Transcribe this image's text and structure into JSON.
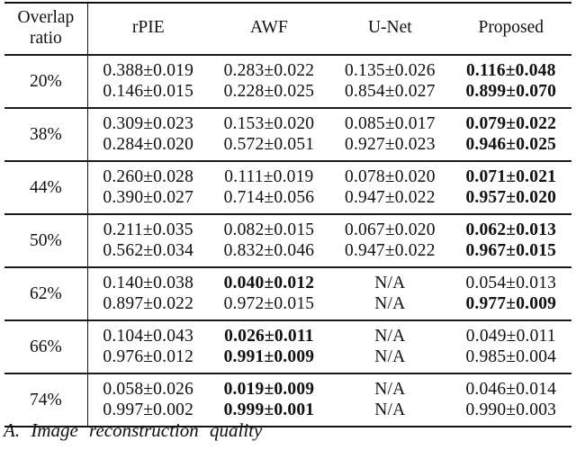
{
  "table": {
    "header": {
      "overlap_line1": "Overlap",
      "overlap_line2": "ratio",
      "methods": [
        "rPIE",
        "AWF",
        "U-Net",
        "Proposed"
      ]
    },
    "rows": [
      {
        "ratio": "20%",
        "cells": [
          {
            "lines": [
              {
                "text": "0.388±0.019",
                "bold": false
              },
              {
                "text": "0.146±0.015",
                "bold": false
              }
            ]
          },
          {
            "lines": [
              {
                "text": "0.283±0.022",
                "bold": false
              },
              {
                "text": "0.228±0.025",
                "bold": false
              }
            ]
          },
          {
            "lines": [
              {
                "text": "0.135±0.026",
                "bold": false
              },
              {
                "text": "0.854±0.027",
                "bold": false
              }
            ]
          },
          {
            "lines": [
              {
                "text": "0.116±0.048",
                "bold": true
              },
              {
                "text": "0.899±0.070",
                "bold": true
              }
            ]
          }
        ]
      },
      {
        "ratio": "38%",
        "cells": [
          {
            "lines": [
              {
                "text": "0.309±0.023",
                "bold": false
              },
              {
                "text": "0.284±0.020",
                "bold": false
              }
            ]
          },
          {
            "lines": [
              {
                "text": "0.153±0.020",
                "bold": false
              },
              {
                "text": "0.572±0.051",
                "bold": false
              }
            ]
          },
          {
            "lines": [
              {
                "text": "0.085±0.017",
                "bold": false
              },
              {
                "text": "0.927±0.023",
                "bold": false
              }
            ]
          },
          {
            "lines": [
              {
                "text": "0.079±0.022",
                "bold": true
              },
              {
                "text": "0.946±0.025",
                "bold": true
              }
            ]
          }
        ]
      },
      {
        "ratio": "44%",
        "cells": [
          {
            "lines": [
              {
                "text": "0.260±0.028",
                "bold": false
              },
              {
                "text": "0.390±0.027",
                "bold": false
              }
            ]
          },
          {
            "lines": [
              {
                "text": "0.111±0.019",
                "bold": false
              },
              {
                "text": "0.714±0.056",
                "bold": false
              }
            ]
          },
          {
            "lines": [
              {
                "text": "0.078±0.020",
                "bold": false
              },
              {
                "text": "0.947±0.022",
                "bold": false
              }
            ]
          },
          {
            "lines": [
              {
                "text": "0.071±0.021",
                "bold": true
              },
              {
                "text": "0.957±0.020",
                "bold": true
              }
            ]
          }
        ]
      },
      {
        "ratio": "50%",
        "cells": [
          {
            "lines": [
              {
                "text": "0.211±0.035",
                "bold": false
              },
              {
                "text": "0.562±0.034",
                "bold": false
              }
            ]
          },
          {
            "lines": [
              {
                "text": "0.082±0.015",
                "bold": false
              },
              {
                "text": "0.832±0.046",
                "bold": false
              }
            ]
          },
          {
            "lines": [
              {
                "text": "0.067±0.020",
                "bold": false
              },
              {
                "text": "0.947±0.022",
                "bold": false
              }
            ]
          },
          {
            "lines": [
              {
                "text": "0.062±0.013",
                "bold": true
              },
              {
                "text": "0.967±0.015",
                "bold": true
              }
            ]
          }
        ]
      },
      {
        "ratio": "62%",
        "cells": [
          {
            "lines": [
              {
                "text": "0.140±0.038",
                "bold": false
              },
              {
                "text": "0.897±0.022",
                "bold": false
              }
            ]
          },
          {
            "lines": [
              {
                "text": "0.040±0.012",
                "bold": true
              },
              {
                "text": "0.972±0.015",
                "bold": false
              }
            ]
          },
          {
            "lines": [
              {
                "text": "N/A",
                "bold": false
              },
              {
                "text": "N/A",
                "bold": false
              }
            ]
          },
          {
            "lines": [
              {
                "text": "0.054±0.013",
                "bold": false
              },
              {
                "text": "0.977±0.009",
                "bold": true
              }
            ]
          }
        ]
      },
      {
        "ratio": "66%",
        "cells": [
          {
            "lines": [
              {
                "text": "0.104±0.043",
                "bold": false
              },
              {
                "text": "0.976±0.012",
                "bold": false
              }
            ]
          },
          {
            "lines": [
              {
                "text": "0.026±0.011",
                "bold": true
              },
              {
                "text": "0.991±0.009",
                "bold": true
              }
            ]
          },
          {
            "lines": [
              {
                "text": "N/A",
                "bold": false
              },
              {
                "text": "N/A",
                "bold": false
              }
            ]
          },
          {
            "lines": [
              {
                "text": "0.049±0.011",
                "bold": false
              },
              {
                "text": "0.985±0.004",
                "bold": false
              }
            ]
          }
        ]
      },
      {
        "ratio": "74%",
        "cells": [
          {
            "lines": [
              {
                "text": "0.058±0.026",
                "bold": false
              },
              {
                "text": "0.997±0.002",
                "bold": false
              }
            ]
          },
          {
            "lines": [
              {
                "text": "0.019±0.009",
                "bold": true
              },
              {
                "text": "0.999±0.001",
                "bold": true
              }
            ]
          },
          {
            "lines": [
              {
                "text": "N/A",
                "bold": false
              },
              {
                "text": "N/A",
                "bold": false
              }
            ]
          },
          {
            "lines": [
              {
                "text": "0.046±0.014",
                "bold": false
              },
              {
                "text": "0.990±0.003",
                "bold": false
              }
            ]
          }
        ]
      }
    ]
  },
  "caption": "A. Image reconstruction quality"
}
